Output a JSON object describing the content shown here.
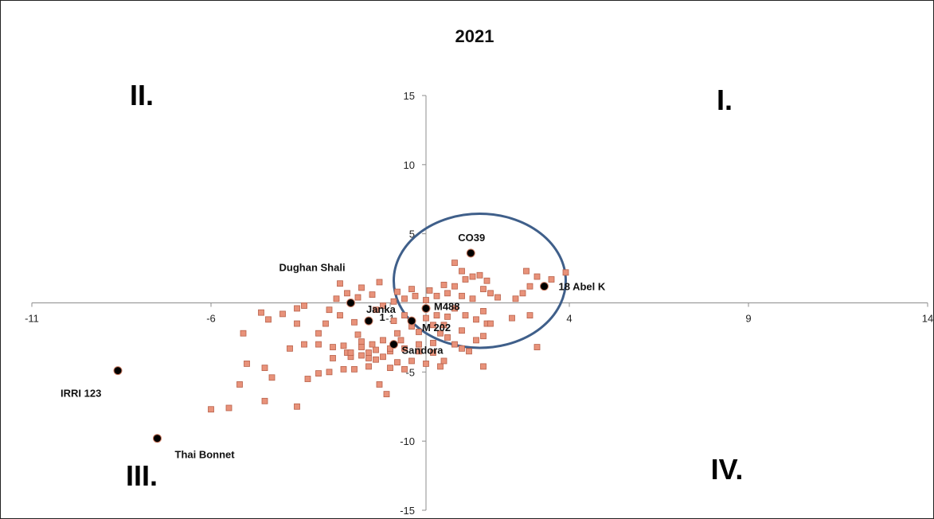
{
  "chart_data": {
    "type": "scatter",
    "title": "2021",
    "xlabel": "",
    "ylabel": "",
    "xlim": [
      -11,
      14
    ],
    "ylim": [
      -15,
      15
    ],
    "x_ticks": [
      -11,
      -6,
      -1,
      4,
      9,
      14
    ],
    "y_ticks": [
      15,
      10,
      5,
      -5,
      -10,
      -15
    ],
    "grid": false,
    "quadrant_labels": [
      {
        "text": "I.",
        "x": 9,
        "y": 14.5
      },
      {
        "text": "II.",
        "x": -8.2,
        "y": 14.5
      },
      {
        "text": "III.",
        "x": -8.4,
        "y": -12.3
      },
      {
        "text": "IV.",
        "x": 9,
        "y": -12
      },
      {
        "text": "",
        "x": 0,
        "y": 0
      }
    ],
    "ellipse": {
      "cx": 1.5,
      "cy": 1.6,
      "rx": 2.4,
      "ry": 4.85,
      "color": "#3f5f8a"
    },
    "colors": {
      "genotype_marker": "#e8927a",
      "genotype_stroke": "#b8614a",
      "highlight": "#000000",
      "ellipse": "#3f5f8a"
    },
    "series": [
      {
        "type": "genotypes",
        "points": [
          [
            -6.0,
            -7.7
          ],
          [
            -5.5,
            -7.6
          ],
          [
            -5.2,
            -5.9
          ],
          [
            -4.5,
            -7.1
          ],
          [
            -3.6,
            -7.5
          ],
          [
            -5.0,
            -4.4
          ],
          [
            -4.5,
            -4.7
          ],
          [
            -4.3,
            -5.4
          ],
          [
            -3.3,
            -5.5
          ],
          [
            -3.0,
            -5.1
          ],
          [
            -2.7,
            -5.0
          ],
          [
            -2.3,
            -4.8
          ],
          [
            -2.0,
            -4.8
          ],
          [
            -1.8,
            -3.8
          ],
          [
            -1.6,
            -4.6
          ],
          [
            -1.3,
            -5.9
          ],
          [
            -1.1,
            -6.6
          ],
          [
            -1.0,
            -4.7
          ],
          [
            -0.8,
            -4.3
          ],
          [
            -0.6,
            -4.8
          ],
          [
            -0.4,
            -4.2
          ],
          [
            0.0,
            -4.4
          ],
          [
            0.4,
            -4.6
          ],
          [
            0.5,
            -4.2
          ],
          [
            0.2,
            -3.6
          ],
          [
            -0.2,
            -3.5
          ],
          [
            -0.6,
            -3.3
          ],
          [
            -1.0,
            -3.5
          ],
          [
            -1.4,
            -3.4
          ],
          [
            -1.8,
            -3.2
          ],
          [
            -2.2,
            -3.6
          ],
          [
            -2.6,
            -3.2
          ],
          [
            -3.0,
            -3.0
          ],
          [
            -3.4,
            -3.0
          ],
          [
            -3.8,
            -3.3
          ],
          [
            -3.0,
            -2.2
          ],
          [
            -2.8,
            -1.5
          ],
          [
            -3.6,
            -1.5
          ],
          [
            -4.0,
            -0.8
          ],
          [
            -4.4,
            -1.2
          ],
          [
            -5.1,
            -2.2
          ],
          [
            -4.6,
            -0.7
          ],
          [
            -3.6,
            -0.4
          ],
          [
            -3.4,
            -0.2
          ],
          [
            -2.7,
            -0.5
          ],
          [
            -2.4,
            -0.9
          ],
          [
            -2.0,
            -1.4
          ],
          [
            -1.9,
            -2.3
          ],
          [
            -1.6,
            -3.6
          ],
          [
            -1.5,
            -3.0
          ],
          [
            -1.2,
            -2.7
          ],
          [
            -0.8,
            -2.2
          ],
          [
            -0.9,
            -1.3
          ],
          [
            -0.6,
            -0.9
          ],
          [
            -0.4,
            -1.7
          ],
          [
            -0.2,
            -2.1
          ],
          [
            0.0,
            -1.1
          ],
          [
            0.2,
            -1.6
          ],
          [
            0.4,
            -2.2
          ],
          [
            0.6,
            -2.5
          ],
          [
            0.8,
            -3.0
          ],
          [
            1.0,
            -3.3
          ],
          [
            1.2,
            -3.5
          ],
          [
            1.4,
            -2.7
          ],
          [
            1.0,
            -2.0
          ],
          [
            0.6,
            -1.0
          ],
          [
            0.8,
            -0.4
          ],
          [
            1.1,
            -0.9
          ],
          [
            1.4,
            -1.2
          ],
          [
            1.7,
            -1.5
          ],
          [
            1.6,
            -0.6
          ],
          [
            1.3,
            0.3
          ],
          [
            1.0,
            0.5
          ],
          [
            0.6,
            0.7
          ],
          [
            0.3,
            0.5
          ],
          [
            0.0,
            0.2
          ],
          [
            -0.3,
            0.5
          ],
          [
            -0.6,
            0.3
          ],
          [
            -0.9,
            0.1
          ],
          [
            -1.2,
            -0.2
          ],
          [
            -1.4,
            -0.5
          ],
          [
            -1.5,
            0.6
          ],
          [
            -1.9,
            0.4
          ],
          [
            -2.2,
            0.7
          ],
          [
            -2.5,
            0.3
          ],
          [
            -2.4,
            1.4
          ],
          [
            -1.8,
            1.1
          ],
          [
            -1.3,
            1.5
          ],
          [
            -0.8,
            0.8
          ],
          [
            -0.4,
            1.0
          ],
          [
            0.1,
            0.9
          ],
          [
            0.5,
            1.3
          ],
          [
            0.8,
            1.2
          ],
          [
            1.1,
            1.7
          ],
          [
            1.3,
            1.9
          ],
          [
            1.5,
            2.0
          ],
          [
            1.7,
            1.6
          ],
          [
            0.8,
            2.9
          ],
          [
            1.0,
            2.3
          ],
          [
            1.6,
            1.0
          ],
          [
            1.8,
            0.7
          ],
          [
            2.0,
            0.4
          ],
          [
            2.5,
            0.3
          ],
          [
            2.7,
            0.7
          ],
          [
            2.9,
            1.2
          ],
          [
            2.8,
            2.3
          ],
          [
            3.1,
            1.9
          ],
          [
            3.5,
            1.7
          ],
          [
            3.9,
            2.2
          ],
          [
            2.9,
            -0.9
          ],
          [
            2.4,
            -1.1
          ],
          [
            1.8,
            -1.5
          ],
          [
            0.5,
            -1.6
          ],
          [
            0.3,
            -0.9
          ],
          [
            -0.7,
            -2.7
          ],
          [
            -1.8,
            -2.8
          ],
          [
            -2.3,
            -3.1
          ],
          [
            -2.1,
            -3.9
          ],
          [
            -2.6,
            -4.0
          ],
          [
            -1.4,
            -4.1
          ],
          [
            -1.2,
            -3.9
          ],
          [
            -1.0,
            -3.3
          ],
          [
            -0.2,
            -3.0
          ],
          [
            0.2,
            -2.9
          ],
          [
            1.6,
            -2.4
          ],
          [
            3.1,
            -3.2
          ],
          [
            1.6,
            -4.6
          ],
          [
            -2.1,
            -3.6
          ],
          [
            -1.6,
            -4.0
          ]
        ]
      },
      {
        "type": "highlighted",
        "points": [
          {
            "x": 1.25,
            "y": 3.6,
            "label": "CO39"
          },
          {
            "x": 3.3,
            "y": 1.2,
            "label": "18 Abel K"
          },
          {
            "x": -2.1,
            "y": 0.0,
            "label": "Dughan Shali"
          },
          {
            "x": -1.6,
            "y": -1.3,
            "label": "Janka"
          },
          {
            "x": 0.0,
            "y": -0.4,
            "label": "M488"
          },
          {
            "x": -0.4,
            "y": -1.3,
            "label": "M 202"
          },
          {
            "x": -0.9,
            "y": -3.0,
            "label": "Sandora"
          },
          {
            "x": -8.6,
            "y": -4.9,
            "label": "IRRI 123"
          },
          {
            "x": -7.5,
            "y": -9.8,
            "label": "Thai Bonnet"
          },
          {
            "x": -1.3,
            "y": -1.0,
            "label": "1"
          }
        ]
      }
    ]
  }
}
